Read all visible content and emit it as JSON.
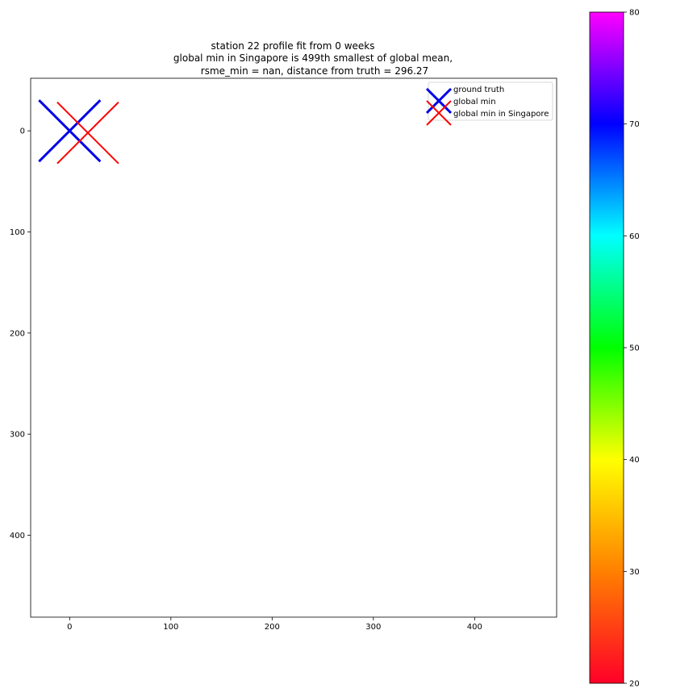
{
  "chart_data": {
    "type": "scatter",
    "title": [
      "station 22 profile fit from 0 weeks",
      "global min in Singapore is 499th smallest of global mean,",
      "rsme_min = nan, distance from truth = 296.27"
    ],
    "xlim": [
      -38.5,
      481
    ],
    "ylim": [
      481,
      -52
    ],
    "y_inverted": true,
    "x_ticks": [
      0,
      100,
      200,
      300,
      400
    ],
    "y_ticks": [
      0,
      100,
      200,
      300,
      400
    ],
    "grid": false,
    "legend_position": "top-right",
    "series": [
      {
        "name": "ground truth",
        "marker": "x",
        "color": "#ffffff",
        "points": []
      },
      {
        "name": "global min",
        "marker": "x",
        "color": "#0000e6",
        "points": [
          {
            "x": 0,
            "y": 0
          }
        ]
      },
      {
        "name": "global min in Singapore",
        "marker": "x",
        "color": "#ff0000",
        "points": [
          {
            "x": 18,
            "y": 2
          }
        ]
      }
    ],
    "colorbar": {
      "min": 20,
      "max": 80,
      "ticks": [
        20,
        30,
        40,
        50,
        60,
        70,
        80
      ],
      "colormap": "gist_rainbow",
      "colors": [
        "#ff0028",
        "#ff8000",
        "#ffff00",
        "#00ff00",
        "#00ffff",
        "#0000ff",
        "#ff00ff"
      ]
    }
  }
}
